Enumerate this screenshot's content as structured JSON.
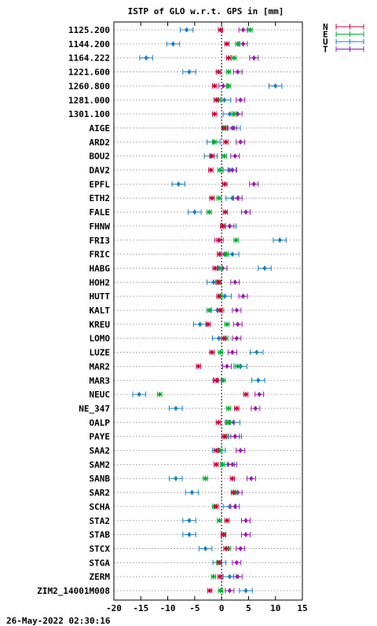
{
  "footer": {
    "timestamp": "26-May-2022 02:30:16"
  },
  "chart_data": {
    "type": "scatter",
    "title": "ISTP of GLO w.r.t. GPS in [mm]",
    "xlim": [
      -20,
      15
    ],
    "xticks": [
      "-20",
      "-15",
      "-10",
      "-5",
      "0",
      "5",
      "10",
      "15"
    ],
    "grid": true,
    "legend_position": "top-right",
    "colors": {
      "N": "#d0003a",
      "E": "#00b030",
      "U": "#1a7fc0",
      "T": "#9a1ab0"
    },
    "series": [
      {
        "name": "N"
      },
      {
        "name": "E"
      },
      {
        "name": "U"
      },
      {
        "name": "T"
      }
    ],
    "stations": [
      {
        "name": "1125.200",
        "N": [
          -0.2,
          0.4
        ],
        "E": [
          5.3,
          0.4
        ],
        "U": [
          -6.5,
          1.2
        ],
        "T": [
          4.0,
          0.8
        ]
      },
      {
        "name": "1144.200",
        "N": [
          1.0,
          0.4
        ],
        "E": [
          3.0,
          0.4
        ],
        "U": [
          -9.0,
          1.2
        ],
        "T": [
          4.0,
          0.8
        ]
      },
      {
        "name": "1164.222",
        "N": [
          1.3,
          0.4
        ],
        "E": [
          2.3,
          0.4
        ],
        "U": [
          -14.0,
          1.2
        ],
        "T": [
          6.0,
          0.8
        ]
      },
      {
        "name": "1221.600",
        "N": [
          -0.6,
          0.4
        ],
        "E": [
          1.3,
          0.4
        ],
        "U": [
          -6.0,
          1.2
        ],
        "T": [
          3.0,
          0.8
        ]
      },
      {
        "name": "1260.800",
        "N": [
          -1.3,
          0.4
        ],
        "E": [
          1.3,
          0.4
        ],
        "U": [
          10.0,
          1.2
        ],
        "T": [
          0.3,
          0.8
        ]
      },
      {
        "name": "1281.000",
        "N": [
          -1.0,
          0.4
        ],
        "E": [
          -0.6,
          0.4
        ],
        "U": [
          0.5,
          1.2
        ],
        "T": [
          3.5,
          0.8
        ]
      },
      {
        "name": "1301.100",
        "N": [
          -1.3,
          0.4
        ],
        "E": [
          2.3,
          0.4
        ],
        "U": [
          1.5,
          1.2
        ],
        "T": [
          3.0,
          0.8
        ]
      },
      {
        "name": "AIGE",
        "N": [
          0.4,
          0.4
        ],
        "E": [
          0.6,
          0.4
        ],
        "U": [
          2.3,
          1.2
        ],
        "T": [
          2.0,
          0.8
        ]
      },
      {
        "name": "ARD2",
        "N": [
          0.8,
          0.4
        ],
        "E": [
          -1.3,
          0.4
        ],
        "U": [
          -1.5,
          1.2
        ],
        "T": [
          3.5,
          0.8
        ]
      },
      {
        "name": "BOU2",
        "N": [
          -1.8,
          0.4
        ],
        "E": [
          0.5,
          0.4
        ],
        "U": [
          -2.0,
          1.2
        ],
        "T": [
          2.5,
          0.8
        ]
      },
      {
        "name": "DAV2",
        "N": [
          -2.0,
          0.4
        ],
        "E": [
          -0.3,
          0.4
        ],
        "U": [
          1.5,
          1.2
        ],
        "T": [
          2.0,
          0.8
        ]
      },
      {
        "name": "EPFL",
        "N": [
          0.6,
          0.4
        ],
        "E": [
          0.6,
          0.4
        ],
        "U": [
          -8.0,
          1.2
        ],
        "T": [
          6.0,
          0.8
        ]
      },
      {
        "name": "ETH2",
        "N": [
          -1.8,
          0.4
        ],
        "E": [
          -0.5,
          0.4
        ],
        "U": [
          2.0,
          1.2
        ],
        "T": [
          3.0,
          0.8
        ]
      },
      {
        "name": "FALE",
        "N": [
          0.7,
          0.4
        ],
        "E": [
          -2.3,
          0.4
        ],
        "U": [
          -5.0,
          1.2
        ],
        "T": [
          4.5,
          0.8
        ]
      },
      {
        "name": "FHNW",
        "N": [
          0.2,
          0.4
        ],
        "E": [
          0.2,
          0.4
        ],
        "U": [
          1.5,
          1.2
        ],
        "T": [
          1.5,
          0.8
        ]
      },
      {
        "name": "FRI3",
        "N": [
          -0.5,
          0.4
        ],
        "E": [
          2.7,
          0.4
        ],
        "U": [
          10.8,
          1.2
        ],
        "T": [
          -0.5,
          0.8
        ]
      },
      {
        "name": "FRIC",
        "N": [
          -0.4,
          0.4
        ],
        "E": [
          0.9,
          0.4
        ],
        "U": [
          2.0,
          1.2
        ],
        "T": [
          0.5,
          0.8
        ]
      },
      {
        "name": "HABG",
        "N": [
          -1.2,
          0.4
        ],
        "E": [
          -0.3,
          0.4
        ],
        "U": [
          8.0,
          1.2
        ],
        "T": [
          0.2,
          0.8
        ]
      },
      {
        "name": "HOH2",
        "N": [
          -0.5,
          0.4
        ],
        "E": [
          -0.7,
          0.4
        ],
        "U": [
          -1.5,
          1.2
        ],
        "T": [
          2.5,
          0.8
        ]
      },
      {
        "name": "HUTT",
        "N": [
          -0.5,
          0.4
        ],
        "E": [
          -0.2,
          0.4
        ],
        "U": [
          0.6,
          1.2
        ],
        "T": [
          4.0,
          0.8
        ]
      },
      {
        "name": "KALT",
        "N": [
          -0.3,
          0.4
        ],
        "E": [
          -2.3,
          0.4
        ],
        "U": [
          -0.8,
          1.2
        ],
        "T": [
          2.8,
          0.8
        ]
      },
      {
        "name": "KREU",
        "N": [
          -2.5,
          0.4
        ],
        "E": [
          1.0,
          0.4
        ],
        "U": [
          -4.0,
          1.2
        ],
        "T": [
          3.0,
          0.8
        ]
      },
      {
        "name": "LOMO",
        "N": [
          0.4,
          0.4
        ],
        "E": [
          0.8,
          0.4
        ],
        "U": [
          -0.5,
          1.2
        ],
        "T": [
          2.8,
          0.8
        ]
      },
      {
        "name": "LUZE",
        "N": [
          -1.8,
          0.4
        ],
        "E": [
          -0.2,
          0.4
        ],
        "U": [
          6.5,
          1.2
        ],
        "T": [
          2.0,
          0.8
        ]
      },
      {
        "name": "MAR2",
        "N": [
          -4.3,
          0.4
        ],
        "E": [
          3.0,
          0.4
        ],
        "U": [
          3.5,
          1.2
        ],
        "T": [
          1.0,
          0.8
        ]
      },
      {
        "name": "MAR3",
        "N": [
          -1.0,
          0.4
        ],
        "E": [
          0.3,
          0.4
        ],
        "U": [
          6.8,
          1.2
        ],
        "T": [
          -0.8,
          0.8
        ]
      },
      {
        "name": "NEUC",
        "N": [
          4.5,
          0.4
        ],
        "E": [
          -11.5,
          0.4
        ],
        "U": [
          -15.3,
          1.2
        ],
        "T": [
          7.0,
          0.8
        ]
      },
      {
        "name": "NE_347",
        "N": [
          2.8,
          0.4
        ],
        "E": [
          1.3,
          0.4
        ],
        "U": [
          -8.5,
          1.2
        ],
        "T": [
          6.3,
          0.8
        ]
      },
      {
        "name": "OALP",
        "N": [
          -0.6,
          0.4
        ],
        "E": [
          1.3,
          0.4
        ],
        "U": [
          2.2,
          1.2
        ],
        "T": [
          1.5,
          0.8
        ]
      },
      {
        "name": "PAYE",
        "N": [
          0.5,
          0.4
        ],
        "E": [
          0.8,
          0.4
        ],
        "U": [
          2.5,
          1.2
        ],
        "T": [
          2.5,
          0.8
        ]
      },
      {
        "name": "SAA2",
        "N": [
          -1.0,
          0.4
        ],
        "E": [
          -0.3,
          0.4
        ],
        "U": [
          -0.5,
          1.2
        ],
        "T": [
          3.5,
          0.8
        ]
      },
      {
        "name": "SAM2",
        "N": [
          -1.0,
          0.4
        ],
        "E": [
          0.2,
          0.4
        ],
        "U": [
          1.2,
          1.2
        ],
        "T": [
          2.0,
          0.8
        ]
      },
      {
        "name": "SANB",
        "N": [
          2.0,
          0.4
        ],
        "E": [
          -3.0,
          0.4
        ],
        "U": [
          -8.5,
          1.2
        ],
        "T": [
          5.5,
          0.8
        ]
      },
      {
        "name": "SAR2",
        "N": [
          2.2,
          0.4
        ],
        "E": [
          2.5,
          0.4
        ],
        "U": [
          -5.5,
          1.2
        ],
        "T": [
          3.0,
          0.8
        ]
      },
      {
        "name": "SCHA",
        "N": [
          -1.0,
          0.4
        ],
        "E": [
          -1.3,
          0.4
        ],
        "U": [
          1.5,
          1.2
        ],
        "T": [
          2.5,
          0.8
        ]
      },
      {
        "name": "STA2",
        "N": [
          1.0,
          0.4
        ],
        "E": [
          -0.4,
          0.4
        ],
        "U": [
          -6.0,
          1.2
        ],
        "T": [
          4.5,
          0.8
        ]
      },
      {
        "name": "STAB",
        "N": [
          0.3,
          0.4
        ],
        "E": [
          0.4,
          0.4
        ],
        "U": [
          -6.0,
          1.2
        ],
        "T": [
          4.5,
          0.8
        ]
      },
      {
        "name": "STCX",
        "N": [
          0.8,
          0.4
        ],
        "E": [
          1.3,
          0.4
        ],
        "U": [
          -3.0,
          1.2
        ],
        "T": [
          3.5,
          0.8
        ]
      },
      {
        "name": "STGA",
        "N": [
          -0.4,
          0.4
        ],
        "E": [
          -0.5,
          0.4
        ],
        "U": [
          -0.4,
          1.2
        ],
        "T": [
          2.8,
          0.8
        ]
      },
      {
        "name": "ZERM",
        "N": [
          -0.3,
          0.4
        ],
        "E": [
          -1.5,
          0.4
        ],
        "U": [
          1.5,
          1.2
        ],
        "T": [
          3.0,
          0.8
        ]
      },
      {
        "name": "ZIM2_14001M008",
        "N": [
          -2.2,
          0.4
        ],
        "E": [
          -0.2,
          0.4
        ],
        "U": [
          4.5,
          1.2
        ],
        "T": [
          1.5,
          0.8
        ]
      }
    ]
  }
}
